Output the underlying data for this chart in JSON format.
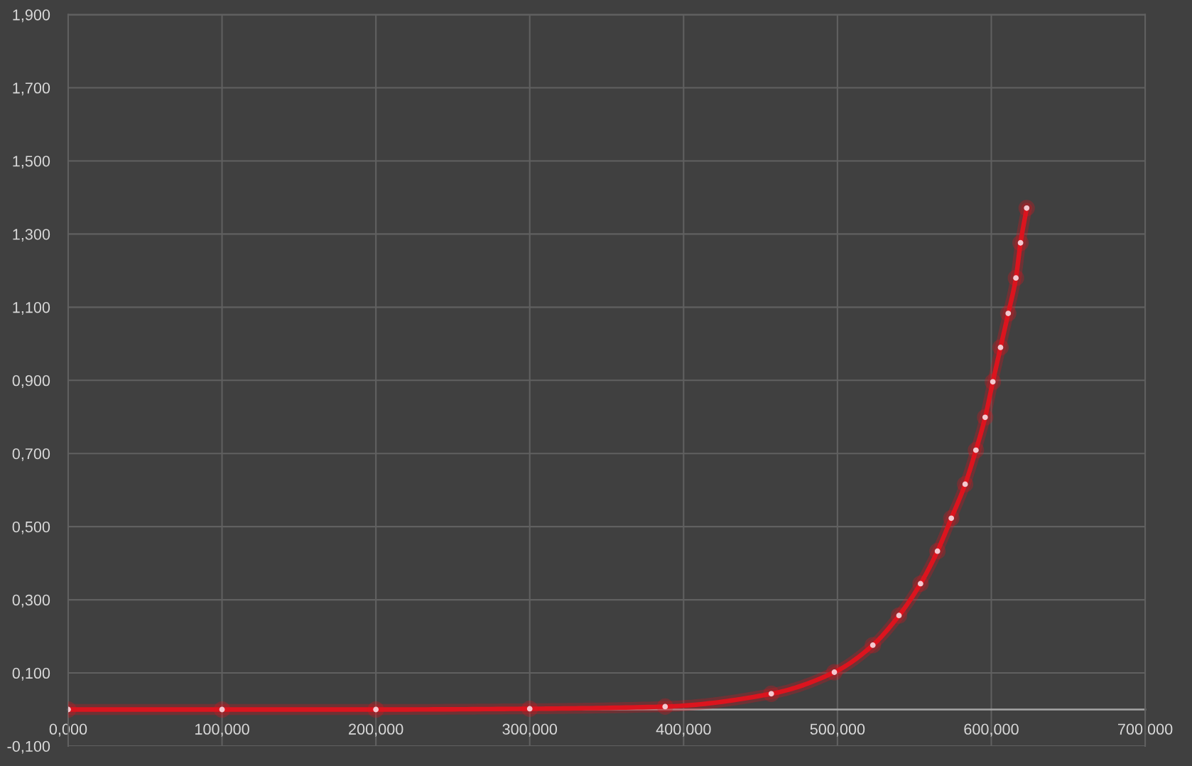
{
  "chart_data": {
    "type": "line",
    "x": [
      0,
      100,
      200,
      300,
      388,
      457,
      498,
      523,
      540,
      554,
      565,
      574,
      583,
      590,
      596,
      601,
      606,
      611,
      616,
      619,
      623
    ],
    "series": [
      {
        "color": "#dc141e",
        "values": [
          0,
          0,
          0,
          0.002,
          0.008,
          0.043,
          0.102,
          0.176,
          0.257,
          0.344,
          0.433,
          0.523,
          0.616,
          0.709,
          0.799,
          0.896,
          0.99,
          1.083,
          1.18,
          1.276,
          1.371
        ]
      }
    ],
    "xlim": [
      0,
      700
    ],
    "xticks": [
      {
        "value": 0,
        "label": "0,000"
      },
      {
        "value": 100,
        "label": "100,000"
      },
      {
        "value": 200,
        "label": "200,000"
      },
      {
        "value": 300,
        "label": "300,000"
      },
      {
        "value": 400,
        "label": "400,000"
      },
      {
        "value": 500,
        "label": "500,000"
      },
      {
        "value": 600,
        "label": "600,000"
      },
      {
        "value": 700,
        "label": "700,000"
      }
    ],
    "ylim": [
      -0.1,
      1.9
    ],
    "yticks": [
      {
        "value": -0.1,
        "label": "-0,100"
      },
      {
        "value": 0.1,
        "label": "0,100"
      },
      {
        "value": 0.3,
        "label": "0,300"
      },
      {
        "value": 0.5,
        "label": "0,500"
      },
      {
        "value": 0.7,
        "label": "0,700"
      },
      {
        "value": 0.9,
        "label": "0,900"
      },
      {
        "value": 1.1,
        "label": "1,100"
      },
      {
        "value": 1.3,
        "label": "1,300"
      },
      {
        "value": 1.5,
        "label": "1,500"
      },
      {
        "value": 1.7,
        "label": "1,700"
      },
      {
        "value": 1.9,
        "label": "1,900"
      }
    ],
    "grid": true,
    "marker": "circle",
    "line_style": "solid"
  }
}
